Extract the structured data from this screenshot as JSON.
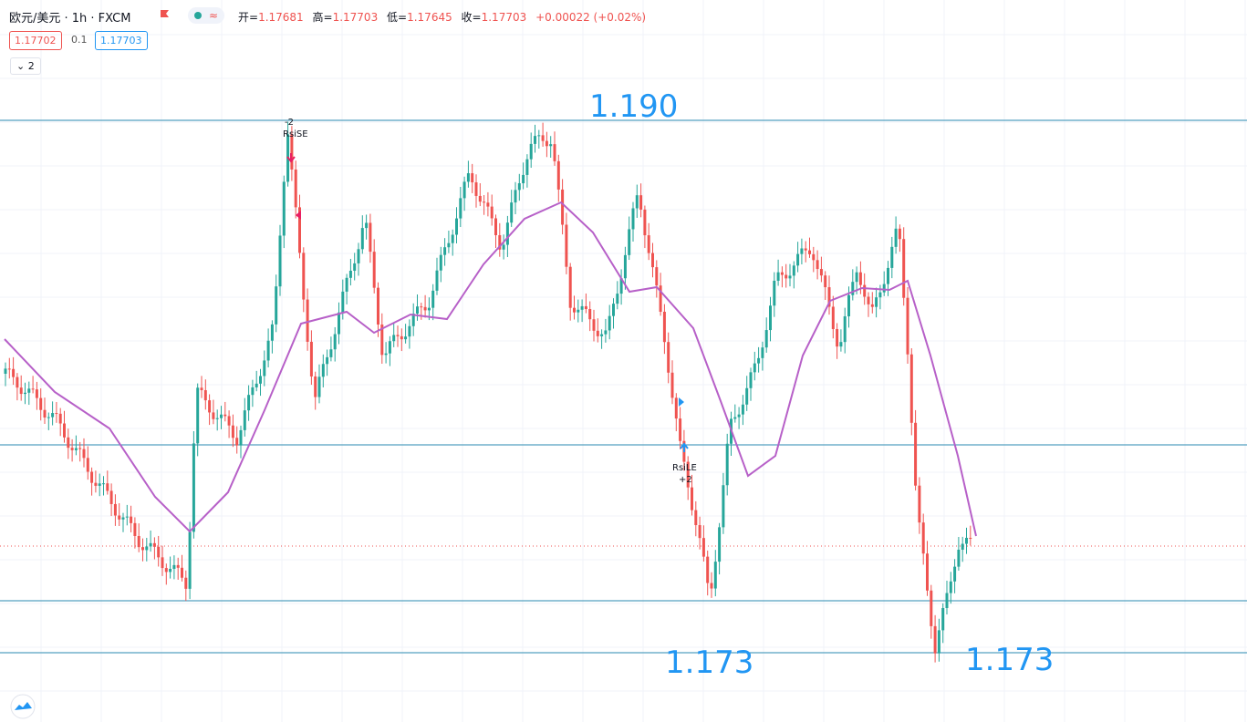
{
  "header": {
    "symbol": "欧元/美元 · 1h · FXCM",
    "open_label": "开=",
    "open": "1.17681",
    "high_label": "高=",
    "high": "1.17703",
    "low_label": "低=",
    "low": "1.17645",
    "close_label": "收=",
    "close": "1.17703",
    "change": "+0.00022 (+0.02%)"
  },
  "quote": {
    "sell": "1.17702",
    "spread": "0.1",
    "buy": "1.17703"
  },
  "indicators_toggle": "2",
  "levels": {
    "top": "1.190",
    "bottom_left": "1.173",
    "bottom_right": "1.173"
  },
  "signals": {
    "short_qty": "-2",
    "short_name": "RsiSE",
    "long_name": "RsiLE",
    "long_qty": "+2"
  }
}
